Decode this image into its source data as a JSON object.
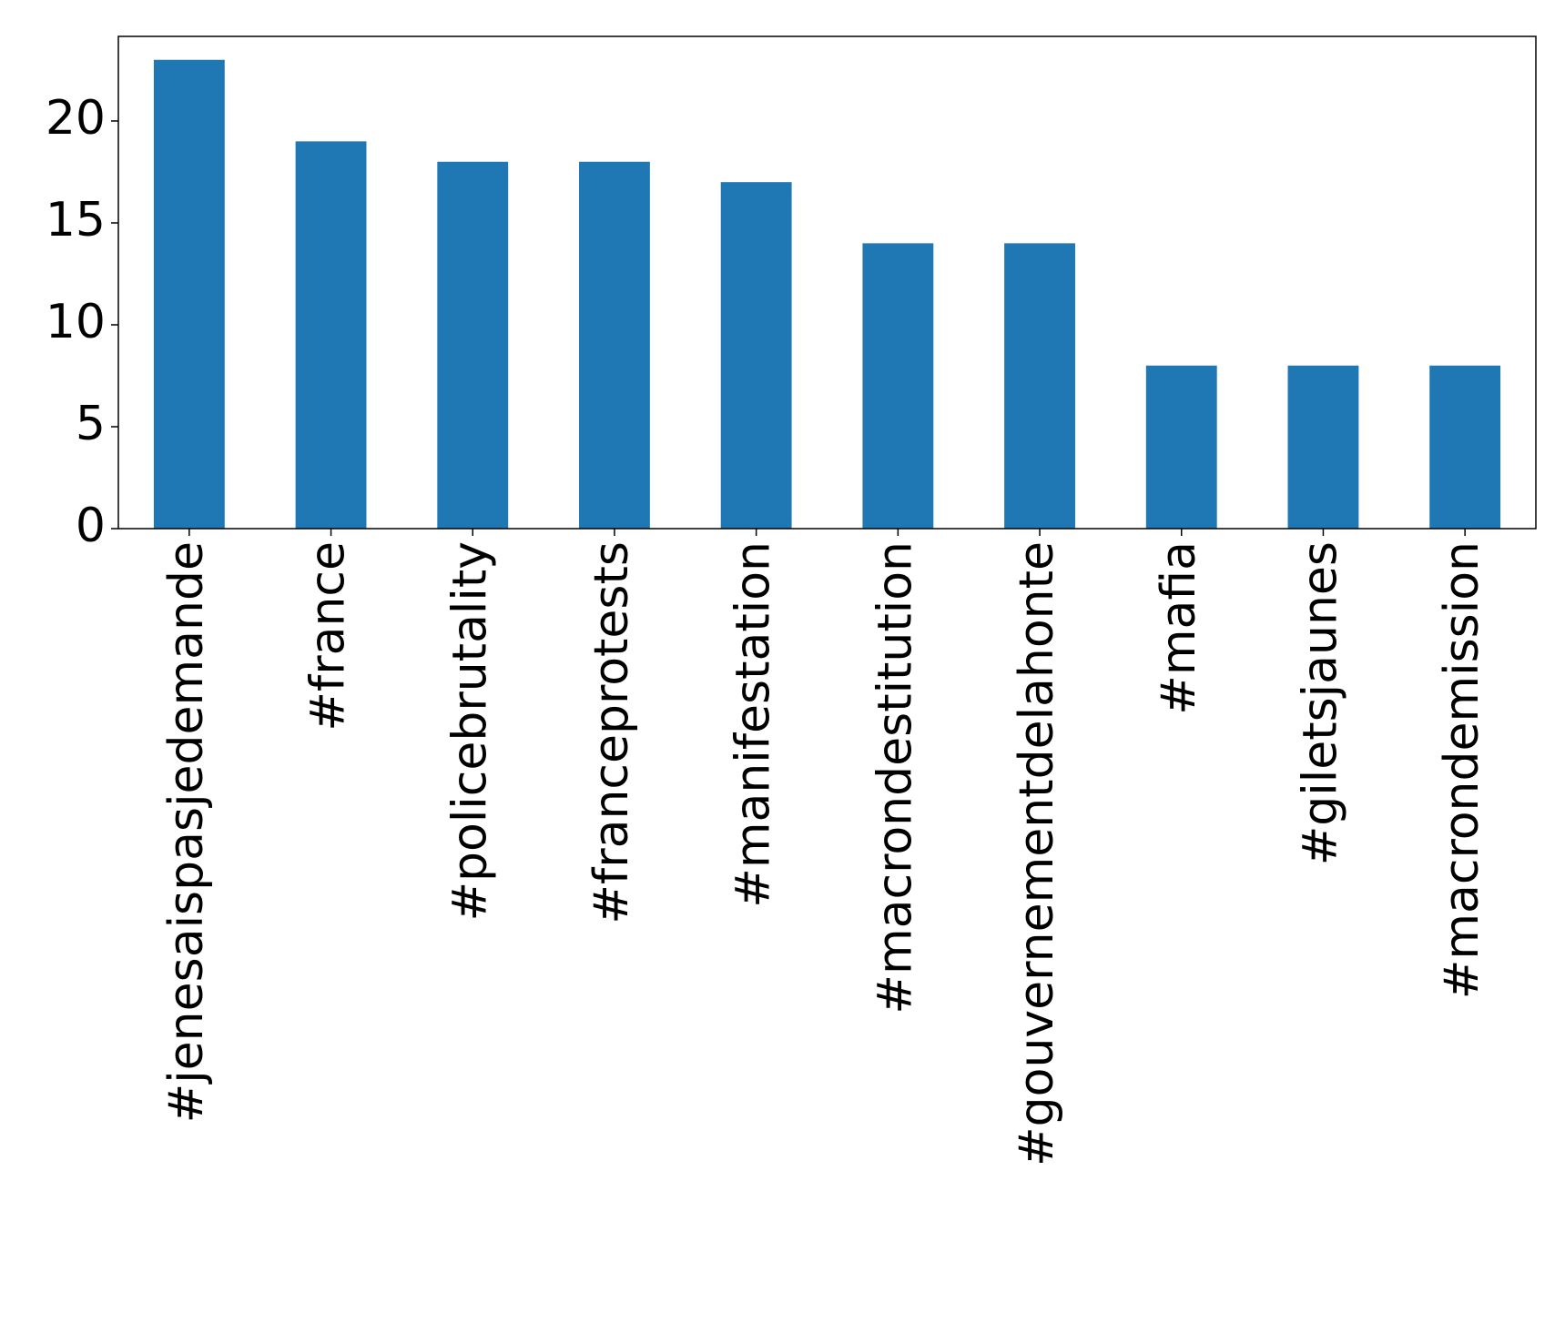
{
  "chart_data": {
    "type": "bar",
    "categories": [
      "#jenesaispasjedemande",
      "#france",
      "#policebrutality",
      "#franceprotests",
      "#manifestation",
      "#macrondestitution",
      "#gouvernementdelahonte",
      "#mafia",
      "#giletsjaunes",
      "#macrondemission"
    ],
    "values": [
      23,
      19,
      18,
      18,
      17,
      14,
      14,
      8,
      8,
      8
    ],
    "color": "#1f77b4",
    "ylim": [
      0,
      24.15
    ],
    "yticks": [
      0,
      5,
      10,
      15,
      20
    ],
    "grid": false
  }
}
